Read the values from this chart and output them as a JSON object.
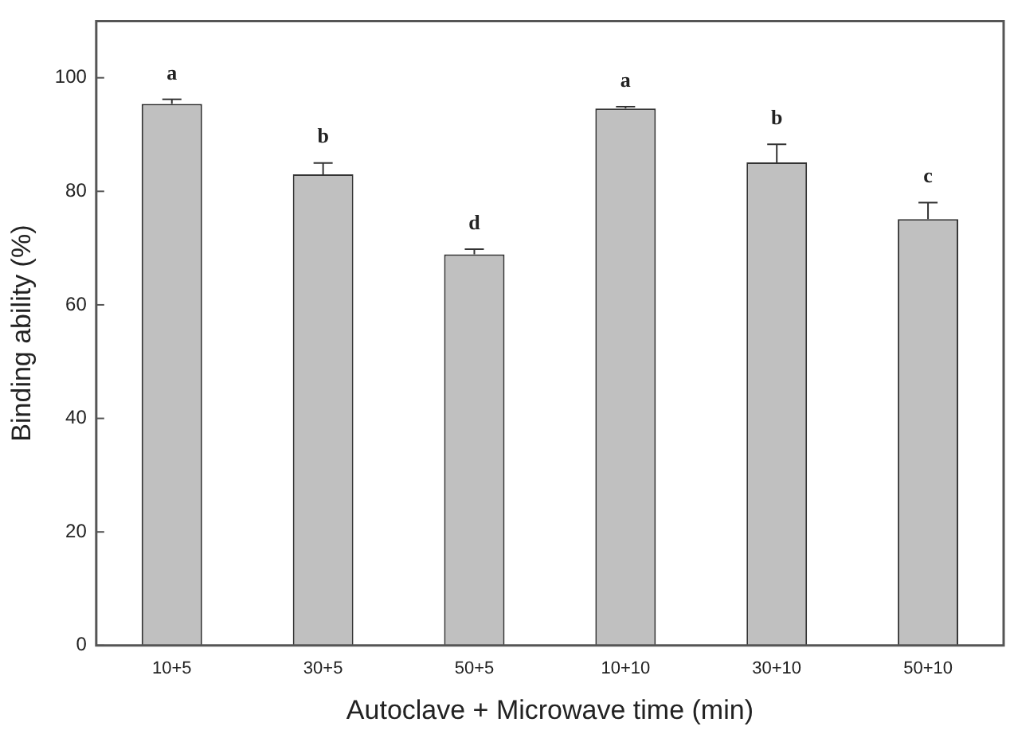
{
  "chart_data": {
    "type": "bar",
    "xlabel": "Autoclave + Microwave time (min)",
    "ylabel": "Binding ability (%)",
    "categories": [
      "10+5",
      "30+5",
      "50+5",
      "10+10",
      "30+10",
      "50+10"
    ],
    "values": [
      95.4,
      83.0,
      68.9,
      94.6,
      85.1,
      75.1
    ],
    "color": "#c0c0c0",
    "errors": [
      0.8,
      2.0,
      0.9,
      0.3,
      3.2,
      2.9
    ],
    "ylim": [
      0,
      110
    ],
    "yticks": [
      0,
      20,
      40,
      60,
      80,
      100
    ],
    "grid": false,
    "legend": false,
    "annotations": [
      "a",
      "b",
      "d",
      "a",
      "b",
      "c"
    ]
  }
}
